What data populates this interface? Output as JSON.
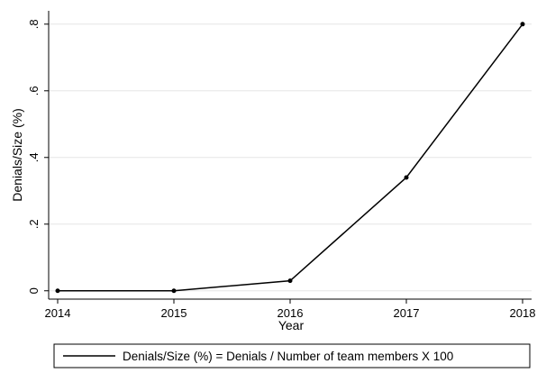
{
  "chart_data": {
    "type": "line",
    "xlabel": "Year",
    "ylabel": "Denials/Size (%)",
    "x": [
      2014,
      2015,
      2016,
      2017,
      2018
    ],
    "x_ticks": [
      "2014",
      "2015",
      "2016",
      "2017",
      "2018"
    ],
    "y_ticks": [
      0,
      0.2,
      0.4,
      0.6,
      0.8
    ],
    "y_tick_labels": [
      "0",
      ".2",
      ".4",
      ".6",
      ".8"
    ],
    "ylim": [
      0,
      0.8
    ],
    "xlim": [
      2014,
      2018
    ],
    "grid": "horizontal",
    "legend_position": "bottom",
    "series": [
      {
        "name": "Denials/Size (%) = Denials / Number of team members X 100",
        "values": [
          0,
          0,
          0.03,
          0.34,
          0.8
        ],
        "color": "#000000",
        "markers": true
      }
    ]
  }
}
